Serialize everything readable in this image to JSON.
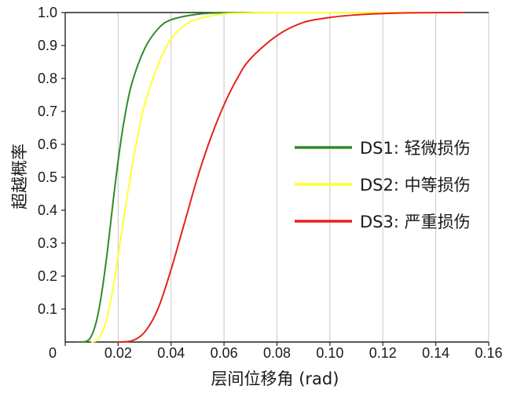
{
  "chart_data": {
    "type": "line",
    "xlabel": "层间位移角 (rad)",
    "ylabel": "超越概率",
    "xlim": [
      0,
      0.16
    ],
    "ylim": [
      0,
      1.0
    ],
    "x_ticks": [
      0,
      0.02,
      0.04,
      0.06,
      0.08,
      0.1,
      0.12,
      0.14,
      0.16
    ],
    "x_tick_labels": [
      "0",
      "0.02",
      "0.04",
      "0.06",
      "0.08",
      "0.10",
      "0.12",
      "0.14",
      "0.16"
    ],
    "y_ticks": [
      0.1,
      0.2,
      0.3,
      0.4,
      0.5,
      0.6,
      0.7,
      0.8,
      0.9,
      1.0
    ],
    "y_tick_labels": [
      "0.1",
      "0.2",
      "0.3",
      "0.4",
      "0.5",
      "0.6",
      "0.7",
      "0.8",
      "0.9",
      "1.0"
    ],
    "grid": "vertical",
    "legend_position": "right",
    "series": [
      {
        "name": "DS1: 轻微损伤",
        "color": "#2e8b2e",
        "points": [
          [
            0.005,
            0
          ],
          [
            0.008,
            0.002
          ],
          [
            0.01,
            0.02
          ],
          [
            0.012,
            0.07
          ],
          [
            0.014,
            0.16
          ],
          [
            0.016,
            0.28
          ],
          [
            0.018,
            0.42
          ],
          [
            0.02,
            0.55
          ],
          [
            0.022,
            0.66
          ],
          [
            0.025,
            0.78
          ],
          [
            0.03,
            0.89
          ],
          [
            0.035,
            0.95
          ],
          [
            0.04,
            0.978
          ],
          [
            0.05,
            0.995
          ],
          [
            0.06,
            0.999
          ],
          [
            0.08,
            1.0
          ],
          [
            0.15,
            1.0
          ]
        ]
      },
      {
        "name": "DS2: 中等损伤",
        "color": "#ffff33",
        "points": [
          [
            0.01,
            0
          ],
          [
            0.012,
            0.005
          ],
          [
            0.014,
            0.03
          ],
          [
            0.016,
            0.08
          ],
          [
            0.018,
            0.16
          ],
          [
            0.02,
            0.26
          ],
          [
            0.022,
            0.37
          ],
          [
            0.025,
            0.52
          ],
          [
            0.027,
            0.61
          ],
          [
            0.03,
            0.72
          ],
          [
            0.035,
            0.84
          ],
          [
            0.04,
            0.92
          ],
          [
            0.045,
            0.96
          ],
          [
            0.05,
            0.98
          ],
          [
            0.06,
            0.996
          ],
          [
            0.07,
            0.999
          ],
          [
            0.08,
            1.0
          ],
          [
            0.15,
            1.0
          ]
        ]
      },
      {
        "name": "DS3: 严重损伤",
        "color": "#e8211b",
        "points": [
          [
            0.02,
            0
          ],
          [
            0.025,
            0.003
          ],
          [
            0.03,
            0.03
          ],
          [
            0.035,
            0.1
          ],
          [
            0.04,
            0.22
          ],
          [
            0.045,
            0.36
          ],
          [
            0.05,
            0.5
          ],
          [
            0.055,
            0.62
          ],
          [
            0.06,
            0.72
          ],
          [
            0.065,
            0.8
          ],
          [
            0.07,
            0.86
          ],
          [
            0.08,
            0.93
          ],
          [
            0.09,
            0.97
          ],
          [
            0.1,
            0.985
          ],
          [
            0.11,
            0.993
          ],
          [
            0.12,
            0.997
          ],
          [
            0.13,
            0.999
          ],
          [
            0.15,
            1.0
          ]
        ]
      }
    ]
  }
}
